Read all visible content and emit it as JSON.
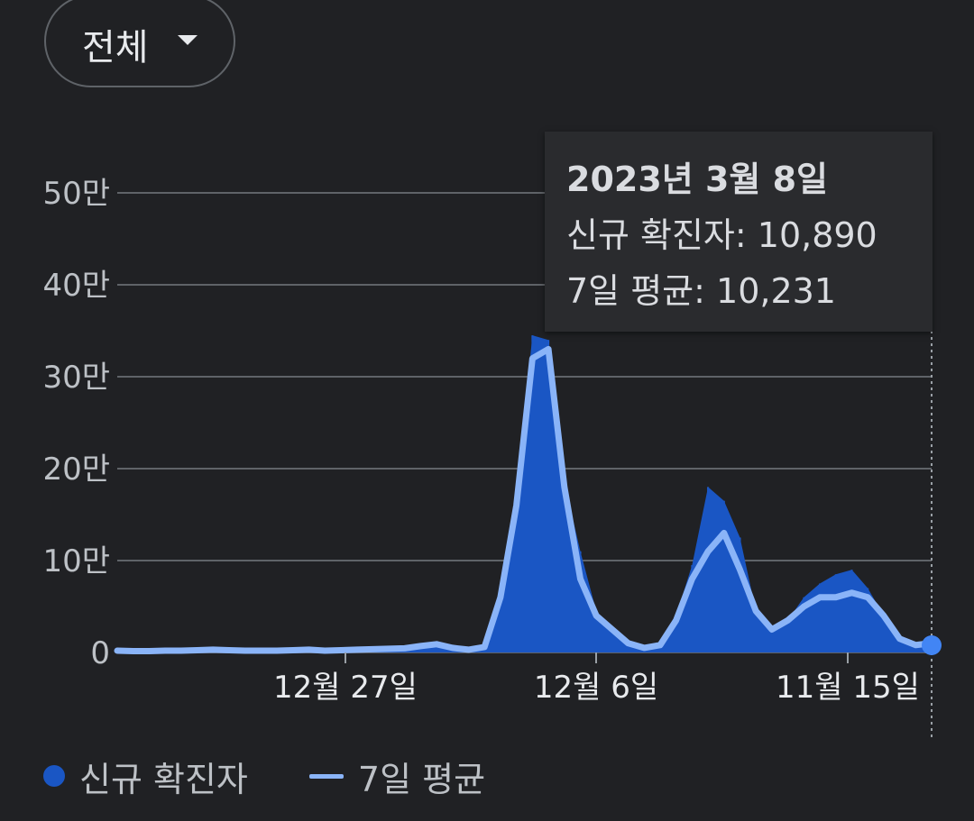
{
  "filter": {
    "label": "전체"
  },
  "chart_data": {
    "type": "area",
    "yticks": [
      {
        "label": "50만",
        "value": 500000
      },
      {
        "label": "40만",
        "value": 400000
      },
      {
        "label": "30만",
        "value": 300000
      },
      {
        "label": "20만",
        "value": 200000
      },
      {
        "label": "10만",
        "value": 100000
      },
      {
        "label": "0",
        "value": 0
      }
    ],
    "ylim": [
      0,
      500000
    ],
    "xticks": [
      "12월 27일",
      "12월 6일",
      "11월 15일"
    ],
    "series": [
      {
        "name": "신규 확진자",
        "color": "#1a56c4",
        "kind": "bar"
      },
      {
        "name": "7일 평균",
        "color": "#8ab4f8",
        "kind": "line"
      }
    ],
    "average_values": [
      2000,
      1500,
      1500,
      2000,
      2000,
      2500,
      3000,
      2500,
      2000,
      2000,
      2000,
      2500,
      3000,
      2000,
      2500,
      3000,
      3500,
      4000,
      4500,
      7000,
      9000,
      5000,
      3000,
      6000,
      60000,
      160000,
      320000,
      330000,
      180000,
      80000,
      40000,
      25000,
      10000,
      5000,
      8000,
      35000,
      80000,
      110000,
      130000,
      90000,
      45000,
      25000,
      35000,
      50000,
      60000,
      60000,
      65000,
      60000,
      40000,
      15000,
      8000,
      10231
    ],
    "daily_values": [
      2000,
      1500,
      1500,
      2000,
      2000,
      2500,
      3000,
      2500,
      2000,
      2000,
      2000,
      2500,
      3000,
      2000,
      2500,
      3000,
      3500,
      4000,
      4500,
      7000,
      9000,
      5000,
      3000,
      6000,
      65000,
      175000,
      345000,
      340000,
      185000,
      110000,
      45000,
      25000,
      10000,
      5000,
      8000,
      40000,
      95000,
      180000,
      165000,
      125000,
      45000,
      25000,
      35000,
      60000,
      75000,
      85000,
      90000,
      70000,
      40000,
      15000,
      8000,
      10890
    ]
  },
  "tooltip": {
    "date": "2023년 3월 8일",
    "new_cases": "신규 확진자: 10,890",
    "avg": "7일 평균: 10,231"
  },
  "legend": {
    "new_cases": "신규 확진자",
    "avg": "7일 평균"
  }
}
